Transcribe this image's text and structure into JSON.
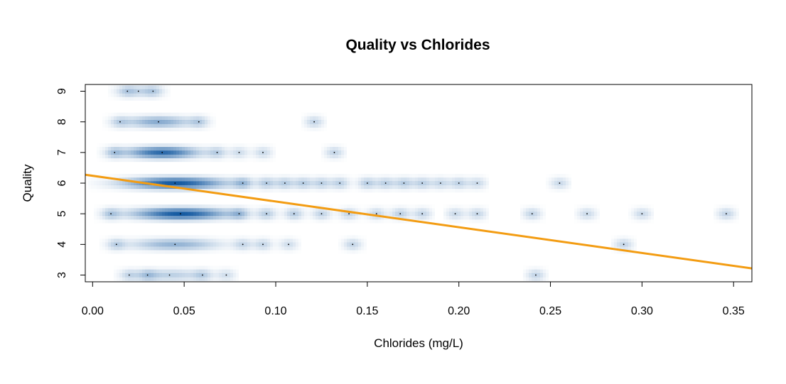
{
  "chart_data": {
    "type": "scatter",
    "title": "Quality vs Chlorides",
    "xlabel": "Chlorides (mg/L)",
    "ylabel": "Quality",
    "xlim": [
      -0.004,
      0.36
    ],
    "ylim": [
      2.78,
      9.22
    ],
    "x_ticks": [
      0.0,
      0.05,
      0.1,
      0.15,
      0.2,
      0.25,
      0.3,
      0.35
    ],
    "x_tick_labels": [
      "0.00",
      "0.05",
      "0.10",
      "0.15",
      "0.20",
      "0.25",
      "0.30",
      "0.35"
    ],
    "y_ticks": [
      3,
      4,
      5,
      6,
      7,
      8,
      9
    ],
    "y_tick_labels": [
      "3",
      "4",
      "5",
      "6",
      "7",
      "8",
      "9"
    ],
    "grid": false,
    "density_color": "#08519c",
    "regression_line": {
      "intercept": 6.24,
      "slope": -8.4,
      "color": "#f39c12"
    },
    "density_rows": [
      {
        "quality": 3,
        "center": 0.042,
        "spread": 0.013,
        "peak": 0.28,
        "extras": [
          [
            0.02,
            0.2
          ],
          [
            0.03,
            0.25
          ],
          [
            0.06,
            0.22
          ],
          [
            0.073,
            0.18
          ],
          [
            0.242,
            0.25
          ]
        ]
      },
      {
        "quality": 4,
        "center": 0.045,
        "spread": 0.016,
        "peak": 0.45,
        "extras": [
          [
            0.013,
            0.25
          ],
          [
            0.082,
            0.22
          ],
          [
            0.093,
            0.24
          ],
          [
            0.107,
            0.2
          ],
          [
            0.142,
            0.25
          ],
          [
            0.29,
            0.25
          ]
        ]
      },
      {
        "quality": 5,
        "center": 0.048,
        "spread": 0.017,
        "peak": 1.0,
        "extras": [
          [
            0.01,
            0.3
          ],
          [
            0.08,
            0.32
          ],
          [
            0.095,
            0.28
          ],
          [
            0.11,
            0.3
          ],
          [
            0.125,
            0.26
          ],
          [
            0.14,
            0.25
          ],
          [
            0.155,
            0.25
          ],
          [
            0.168,
            0.28
          ],
          [
            0.18,
            0.25
          ],
          [
            0.198,
            0.22
          ],
          [
            0.21,
            0.24
          ],
          [
            0.24,
            0.25
          ],
          [
            0.27,
            0.22
          ],
          [
            0.3,
            0.22
          ],
          [
            0.346,
            0.25
          ]
        ]
      },
      {
        "quality": 6,
        "center": 0.045,
        "spread": 0.018,
        "peak": 1.0,
        "extras": [
          [
            0.082,
            0.35
          ],
          [
            0.095,
            0.3
          ],
          [
            0.105,
            0.3
          ],
          [
            0.115,
            0.3
          ],
          [
            0.125,
            0.28
          ],
          [
            0.135,
            0.28
          ],
          [
            0.15,
            0.3
          ],
          [
            0.16,
            0.28
          ],
          [
            0.17,
            0.3
          ],
          [
            0.18,
            0.28
          ],
          [
            0.19,
            0.24
          ],
          [
            0.2,
            0.26
          ],
          [
            0.21,
            0.22
          ],
          [
            0.255,
            0.22
          ]
        ]
      },
      {
        "quality": 7,
        "center": 0.038,
        "spread": 0.013,
        "peak": 0.9,
        "extras": [
          [
            0.012,
            0.3
          ],
          [
            0.068,
            0.25
          ],
          [
            0.08,
            0.2
          ],
          [
            0.093,
            0.22
          ],
          [
            0.132,
            0.25
          ]
        ]
      },
      {
        "quality": 8,
        "center": 0.036,
        "spread": 0.012,
        "peak": 0.5,
        "extras": [
          [
            0.015,
            0.22
          ],
          [
            0.058,
            0.25
          ],
          [
            0.121,
            0.25
          ]
        ]
      },
      {
        "quality": 9,
        "center": 0.025,
        "spread": 0.008,
        "peak": 0.22,
        "extras": [
          [
            0.019,
            0.2
          ],
          [
            0.033,
            0.22
          ]
        ]
      }
    ]
  }
}
